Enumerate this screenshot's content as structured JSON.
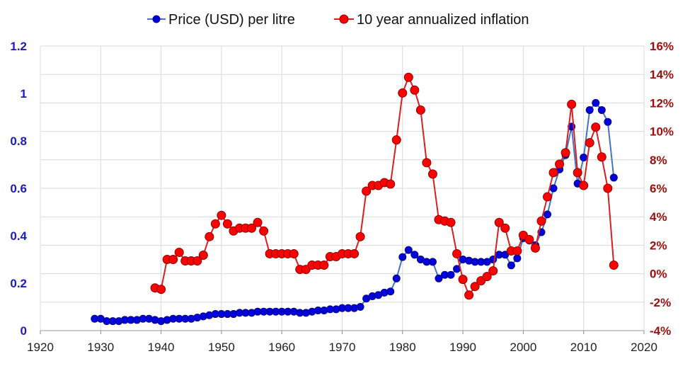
{
  "chart_data": {
    "type": "line",
    "title": "",
    "xlabel": "",
    "ylabel": "",
    "xlim": [
      1920,
      2020
    ],
    "x_ticks": [
      "1920",
      "1930",
      "1940",
      "1950",
      "1960",
      "1970",
      "1980",
      "1990",
      "2000",
      "2010",
      "2020"
    ],
    "ylim_left": [
      0,
      1.2
    ],
    "y_ticks_left": [
      "0",
      "0.2",
      "0.4",
      "0.6",
      "0.8",
      "1",
      "1.2"
    ],
    "ylim_right": [
      -4,
      16
    ],
    "y_ticks_right": [
      "-4%",
      "-2%",
      "0%",
      "2%",
      "4%",
      "6%",
      "8%",
      "10%",
      "12%",
      "14%",
      "16%"
    ],
    "grid": true,
    "legend_position": "top",
    "series": [
      {
        "name": "Price (USD)  per litre",
        "axis": "left",
        "color": "#0000dd",
        "line_color": "#4472c4",
        "x": [
          1929,
          1930,
          1931,
          1932,
          1933,
          1934,
          1935,
          1936,
          1937,
          1938,
          1939,
          1940,
          1941,
          1942,
          1943,
          1944,
          1945,
          1946,
          1947,
          1948,
          1949,
          1950,
          1951,
          1952,
          1953,
          1954,
          1955,
          1956,
          1957,
          1958,
          1959,
          1960,
          1961,
          1962,
          1963,
          1964,
          1965,
          1966,
          1967,
          1968,
          1969,
          1970,
          1971,
          1972,
          1973,
          1974,
          1975,
          1976,
          1977,
          1978,
          1979,
          1980,
          1981,
          1982,
          1983,
          1984,
          1985,
          1986,
          1987,
          1988,
          1989,
          1990,
          1991,
          1992,
          1993,
          1994,
          1995,
          1996,
          1997,
          1998,
          1999,
          2000,
          2001,
          2002,
          2003,
          2004,
          2005,
          2006,
          2007,
          2008,
          2009,
          2010,
          2011,
          2012,
          2013,
          2014,
          2015
        ],
        "values": [
          0.05,
          0.05,
          0.04,
          0.04,
          0.04,
          0.045,
          0.045,
          0.045,
          0.05,
          0.05,
          0.045,
          0.04,
          0.045,
          0.05,
          0.05,
          0.05,
          0.05,
          0.055,
          0.06,
          0.065,
          0.07,
          0.07,
          0.07,
          0.07,
          0.075,
          0.075,
          0.075,
          0.08,
          0.08,
          0.08,
          0.08,
          0.08,
          0.08,
          0.08,
          0.075,
          0.075,
          0.08,
          0.085,
          0.085,
          0.09,
          0.09,
          0.095,
          0.095,
          0.095,
          0.1,
          0.135,
          0.145,
          0.15,
          0.16,
          0.165,
          0.22,
          0.31,
          0.34,
          0.32,
          0.3,
          0.29,
          0.29,
          0.22,
          0.235,
          0.235,
          0.26,
          0.3,
          0.295,
          0.29,
          0.29,
          0.29,
          0.3,
          0.32,
          0.32,
          0.275,
          0.305,
          0.39,
          0.38,
          0.36,
          0.415,
          0.49,
          0.6,
          0.68,
          0.74,
          0.86,
          0.62,
          0.73,
          0.93,
          0.96,
          0.93,
          0.88,
          0.645
        ]
      },
      {
        "name": "10 year annualized inflation",
        "axis": "right",
        "color": "#ff0000",
        "line_color": "#d42020",
        "x": [
          1939,
          1940,
          1941,
          1942,
          1943,
          1944,
          1945,
          1946,
          1947,
          1948,
          1949,
          1950,
          1951,
          1952,
          1953,
          1954,
          1955,
          1956,
          1957,
          1958,
          1959,
          1960,
          1961,
          1962,
          1963,
          1964,
          1965,
          1966,
          1967,
          1968,
          1969,
          1970,
          1971,
          1972,
          1973,
          1974,
          1975,
          1976,
          1977,
          1978,
          1979,
          1980,
          1981,
          1982,
          1983,
          1984,
          1985,
          1986,
          1987,
          1988,
          1989,
          1990,
          1991,
          1992,
          1993,
          1994,
          1995,
          1996,
          1997,
          1998,
          1999,
          2000,
          2001,
          2002,
          2003,
          2004,
          2005,
          2006,
          2007,
          2008,
          2009,
          2010,
          2011,
          2012,
          2013,
          2014,
          2015
        ],
        "values": [
          -1.0,
          -1.1,
          1.0,
          1.0,
          1.5,
          0.9,
          0.9,
          0.9,
          1.3,
          2.6,
          3.5,
          4.1,
          3.5,
          3.0,
          3.2,
          3.2,
          3.2,
          3.6,
          3.0,
          1.4,
          1.4,
          1.4,
          1.4,
          1.4,
          0.3,
          0.3,
          0.6,
          0.6,
          0.6,
          1.2,
          1.2,
          1.4,
          1.4,
          1.4,
          2.6,
          5.8,
          6.2,
          6.2,
          6.4,
          6.3,
          9.4,
          12.7,
          13.8,
          12.9,
          11.5,
          7.8,
          7.0,
          3.8,
          3.7,
          3.6,
          1.4,
          -0.4,
          -1.5,
          -0.9,
          -0.5,
          -0.2,
          0.2,
          3.6,
          3.2,
          1.6,
          1.6,
          2.7,
          2.4,
          1.8,
          3.7,
          5.4,
          7.1,
          7.7,
          8.5,
          11.9,
          7.1,
          6.2,
          9.2,
          10.3,
          8.2,
          6.0,
          0.6
        ]
      }
    ]
  }
}
